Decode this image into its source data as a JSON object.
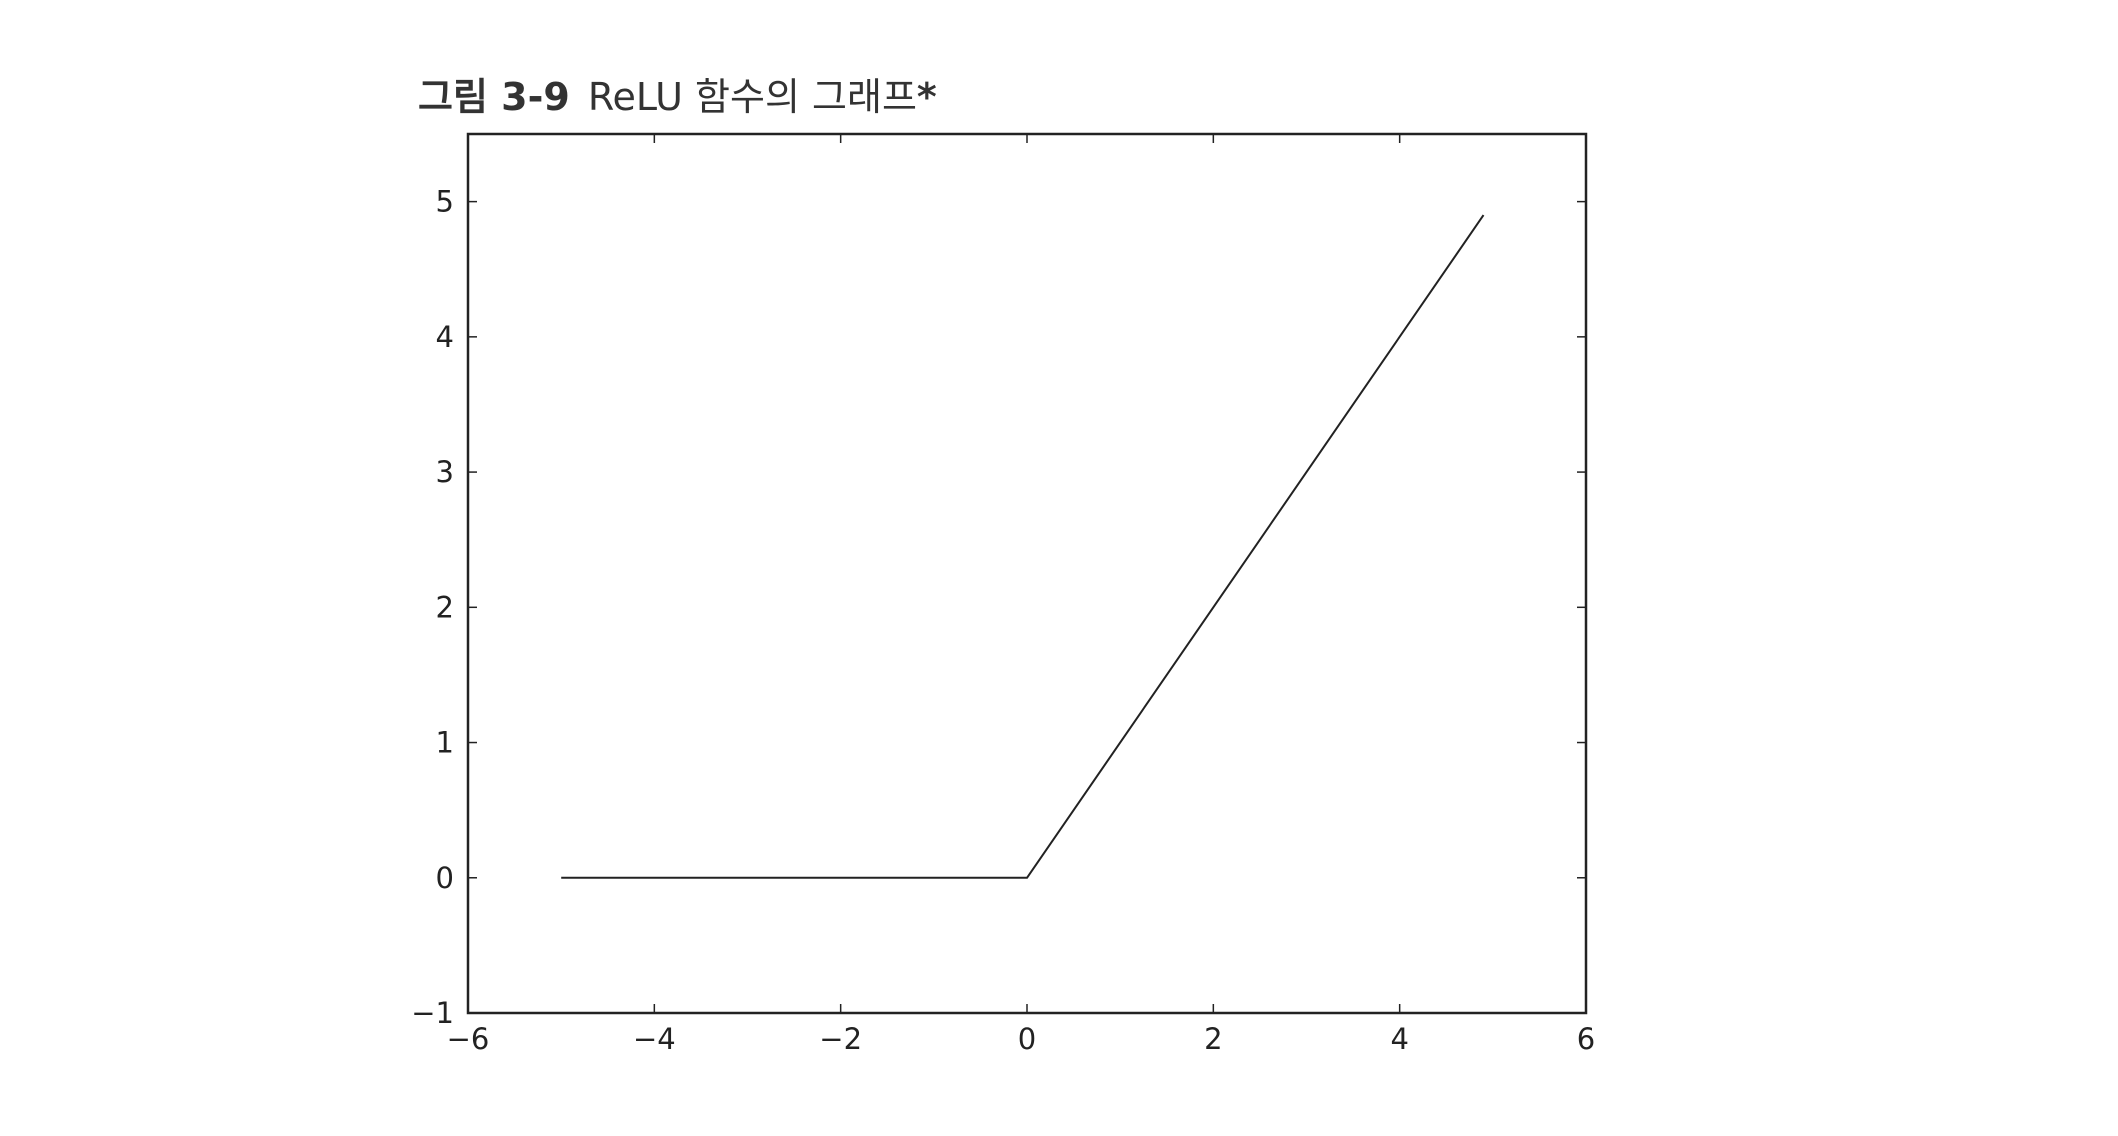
{
  "caption": {
    "number": "그림 3-9",
    "text": "ReLU 함수의 그래프",
    "marker": "*"
  },
  "chart_data": {
    "type": "line",
    "title": "",
    "xlabel": "",
    "ylabel": "",
    "xlim": [
      -6,
      6
    ],
    "ylim": [
      -1,
      5.5
    ],
    "xticks": [
      -6,
      -4,
      -2,
      0,
      2,
      4,
      6
    ],
    "xtick_labels": [
      "−6",
      "−4",
      "−2",
      "0",
      "2",
      "4",
      "6"
    ],
    "yticks": [
      -1,
      0,
      1,
      2,
      3,
      4,
      5
    ],
    "ytick_labels": [
      "−1",
      "0",
      "1",
      "2",
      "3",
      "4",
      "5"
    ],
    "grid": false,
    "legend": "none",
    "line_color": "#222222",
    "series": [
      {
        "x": [
          -5.0,
          0.0,
          4.9
        ],
        "y": [
          0.0,
          0.0,
          4.9
        ]
      }
    ]
  }
}
